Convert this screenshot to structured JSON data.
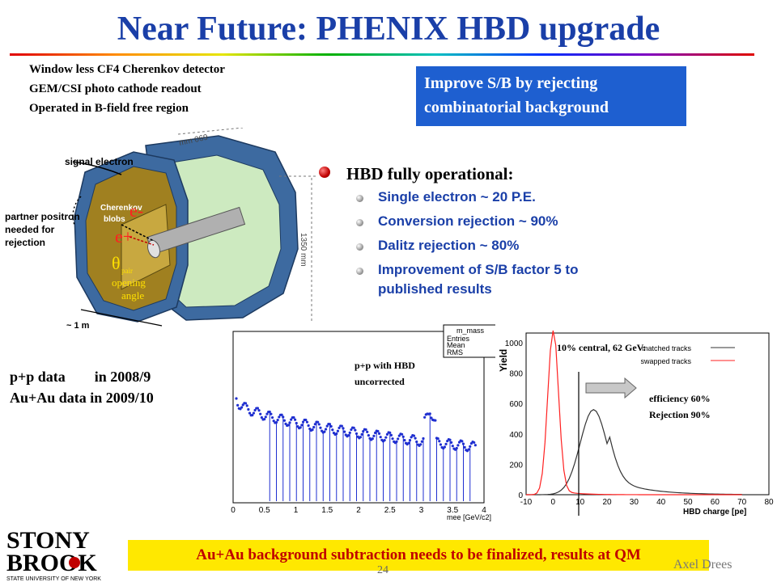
{
  "title": "Near Future: PHENIX HBD upgrade",
  "intro": [
    "Window less CF4 Cherenkov detector",
    "GEM/CSI photo cathode readout",
    "Operated in B-field free region"
  ],
  "callout": [
    "Improve S/B by rejecting",
    "combinatorial background"
  ],
  "detector_labels": {
    "signal_electron": "signal electron",
    "partner": [
      "partner positron",
      "needed for",
      "rejection"
    ],
    "cherenkov": [
      "Cherenkov",
      "blobs"
    ],
    "e_minus": "e-",
    "e_plus": "e+",
    "theta": "θ",
    "pair": "pair",
    "opening": [
      "opening",
      "angle"
    ],
    "length_1m": "~ 1 m",
    "dim_top": "mm 069",
    "dim_side": "1350 mm"
  },
  "bullets": {
    "main": "HBD fully operational:",
    "items": [
      "Single electron ~ 20 P.E.",
      "Conversion rejection ~ 90%",
      "Dalitz rejection ~ 80%",
      "Improvement of S/B factor 5 to",
      "published results"
    ]
  },
  "data_schedule": [
    "p+p data        in 2008/9",
    "Au+Au data in 2009/10"
  ],
  "plot_left": {
    "annotation": [
      "p+p with HBD",
      "uncorrected"
    ],
    "stats": [
      "Entries",
      "Mean",
      "RMS"
    ],
    "stats_title": "m_mass",
    "xticks": [
      "0",
      "0.5",
      "1",
      "1.5",
      "2",
      "2.5",
      "3",
      "3.5",
      "4"
    ],
    "xlabel": "mee [GeV/c2]"
  },
  "plot_right": {
    "annotation": "10% central, 62 GeV:",
    "legend": [
      "matched tracks",
      "swapped tracks"
    ],
    "eff": [
      "efficiency 60%",
      "Rejection 90%"
    ],
    "ylabel": "Yield",
    "xlabel": "HBD charge [pe]",
    "yticks": [
      "0",
      "200",
      "400",
      "600",
      "800",
      "1000"
    ],
    "xticks": [
      "-10",
      "0",
      "10",
      "20",
      "30",
      "40",
      "50",
      "60",
      "70",
      "80"
    ],
    "colors": {
      "matched": "#333333",
      "swapped": "#ff2020"
    }
  },
  "bottom_banner": "Au+Au background subtraction needs to be finalized, results at QM",
  "logo": {
    "line1": "STONY",
    "line2": "BROOK",
    "line3": "STATE UNIVERSITY OF NEW YORK"
  },
  "page_number": "24",
  "author": "Axel Drees"
}
